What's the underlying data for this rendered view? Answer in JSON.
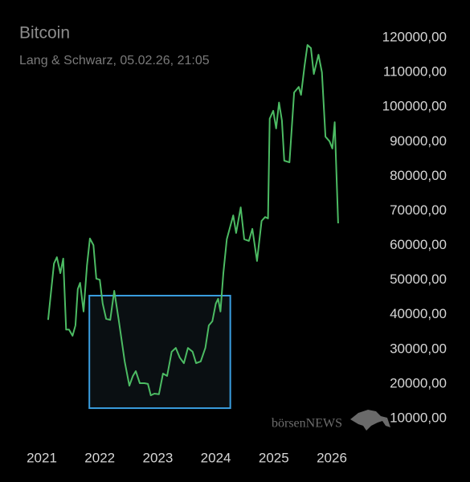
{
  "chart_data": {
    "type": "line",
    "title": "Bitcoin",
    "subtitle": "Lang & Schwarz, 05.02.26, 21:05",
    "watermark": "börsenNEWS",
    "x": [
      2021.11,
      2021.21,
      2021.26,
      2021.32,
      2021.37,
      2021.42,
      2021.47,
      2021.53,
      2021.58,
      2021.62,
      2021.66,
      2021.72,
      2021.78,
      2021.83,
      2021.89,
      2021.94,
      2022.0,
      2022.05,
      2022.11,
      2022.18,
      2022.25,
      2022.33,
      2022.43,
      2022.51,
      2022.57,
      2022.62,
      2022.69,
      2022.77,
      2022.83,
      2022.88,
      2022.94,
      2023.02,
      2023.09,
      2023.16,
      2023.24,
      2023.31,
      2023.38,
      2023.45,
      2023.52,
      2023.6,
      2023.66,
      2023.74,
      2023.82,
      2023.88,
      2023.94,
      2024.0,
      2024.04,
      2024.08,
      2024.13,
      2024.19,
      2024.3,
      2024.35,
      2024.43,
      2024.49,
      2024.57,
      2024.63,
      2024.71,
      2024.79,
      2024.85,
      2024.9,
      2024.93,
      2024.99,
      2025.04,
      2025.09,
      2025.14,
      2025.18,
      2025.27,
      2025.35,
      2025.43,
      2025.47,
      2025.53,
      2025.58,
      2025.64,
      2025.69,
      2025.77,
      2025.83,
      2025.89,
      2025.96,
      2026.01,
      2026.05,
      2026.11
    ],
    "series": [
      {
        "name": "Bitcoin",
        "color": "#4cbb63",
        "values": [
          38500,
          54800,
          56600,
          52000,
          56200,
          35700,
          35700,
          33900,
          36900,
          47400,
          49200,
          40900,
          54300,
          62000,
          60100,
          50400,
          50100,
          43200,
          38800,
          38500,
          46900,
          38100,
          26500,
          19500,
          22300,
          23700,
          20200,
          20200,
          20000,
          16700,
          17200,
          17000,
          23000,
          22300,
          29300,
          30400,
          27600,
          26000,
          30400,
          29300,
          26000,
          26500,
          30400,
          36900,
          38100,
          43200,
          44600,
          40900,
          52000,
          61800,
          68700,
          63600,
          71000,
          61800,
          61300,
          64800,
          55500,
          67100,
          68200,
          67800,
          96600,
          98900,
          93800,
          101300,
          96100,
          84500,
          84000,
          104200,
          105800,
          103500,
          111900,
          117900,
          117000,
          109500,
          115100,
          110000,
          91400,
          90100,
          88000,
          95600,
          66400
        ]
      }
    ],
    "highlight_box": {
      "x": [
        2021.82,
        2024.25
      ],
      "y": [
        13000,
        45500
      ],
      "color": "#3a9ee0"
    },
    "xlim": [
      2021,
      2026.2
    ],
    "xticks": [
      2021,
      2022,
      2023,
      2024,
      2025,
      2026
    ],
    "ylim": [
      10000,
      120000
    ],
    "yticks": [
      {
        "value": 10000,
        "label": "10000,00"
      },
      {
        "value": 20000,
        "label": "20000,00"
      },
      {
        "value": 30000,
        "label": "30000,00"
      },
      {
        "value": 40000,
        "label": "40000,00"
      },
      {
        "value": 50000,
        "label": "50000,00"
      },
      {
        "value": 60000,
        "label": "60000,00"
      },
      {
        "value": 70000,
        "label": "70000,00"
      },
      {
        "value": 80000,
        "label": "80000,00"
      },
      {
        "value": 90000,
        "label": "90000,00"
      },
      {
        "value": 100000,
        "label": "100000,00"
      },
      {
        "value": 110000,
        "label": "110000,00"
      },
      {
        "value": 120000,
        "label": "120000,00"
      }
    ]
  }
}
